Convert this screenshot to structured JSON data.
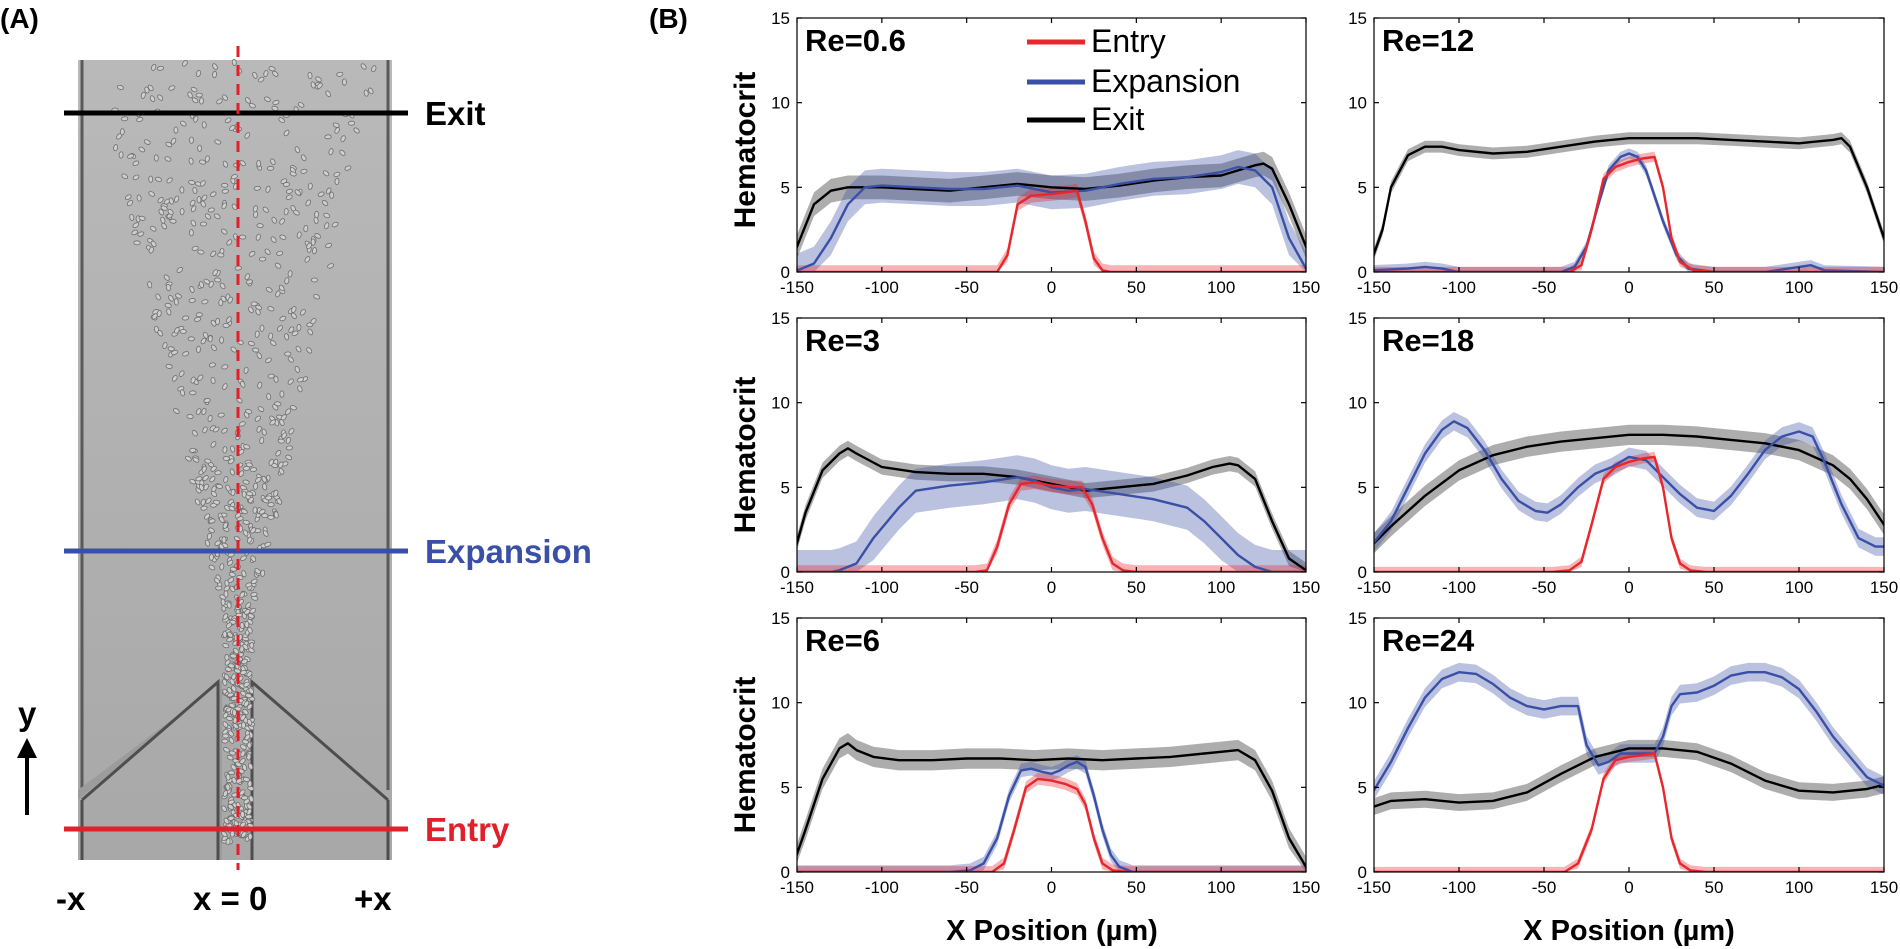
{
  "panel_a": {
    "tag": "(A)",
    "labels": {
      "exit": "Exit",
      "expansion": "Expansion",
      "entry": "Entry"
    },
    "axis": {
      "y": "y",
      "left": "-x",
      "center": "x = 0",
      "right": "+x"
    },
    "colors": {
      "exit": "#000000",
      "expansion": "#3a4fa6",
      "entry": "#e0202a"
    }
  },
  "panel_b": {
    "tag": "(B)",
    "xlabel": "X Position (µm)",
    "ylabel": "Hematocrit",
    "legend": [
      {
        "name": "Entry",
        "color": "#e8262c"
      },
      {
        "name": "Expansion",
        "color": "#3a4fa6"
      },
      {
        "name": "Exit",
        "color": "#000000"
      }
    ]
  },
  "chart_data": [
    {
      "type": "line",
      "title": "Re=0.6",
      "xlim": [
        -150,
        150
      ],
      "ylim": [
        0,
        15
      ],
      "xticks": [
        -150,
        -100,
        -50,
        0,
        50,
        100,
        150
      ],
      "yticks": [
        0,
        5,
        10,
        15
      ],
      "xlabel": "",
      "ylabel": "Hematocrit",
      "series": [
        {
          "name": "Exit",
          "color": "#000000",
          "band": 0.7,
          "x": [
            -152,
            -140,
            -130,
            -120,
            -100,
            -80,
            -60,
            -40,
            -20,
            0,
            20,
            40,
            60,
            80,
            100,
            110,
            120,
            125,
            130,
            140,
            150,
            152
          ],
          "y": [
            1.0,
            4.0,
            4.8,
            5.0,
            5.0,
            4.9,
            4.8,
            5.0,
            5.2,
            5.0,
            4.9,
            5.1,
            5.4,
            5.6,
            5.7,
            6.0,
            6.3,
            6.4,
            6.1,
            4.0,
            1.5,
            1.0
          ]
        },
        {
          "name": "Expansion",
          "color": "#3a4fa6",
          "band": 1.0,
          "x": [
            -152,
            -140,
            -130,
            -120,
            -110,
            -100,
            -80,
            -60,
            -40,
            -20,
            0,
            20,
            40,
            60,
            80,
            100,
            110,
            120,
            130,
            140,
            150,
            152
          ],
          "y": [
            0,
            0.5,
            2.0,
            4.0,
            5.0,
            5.1,
            5.0,
            4.9,
            4.9,
            5.1,
            4.7,
            4.8,
            5.2,
            5.5,
            5.6,
            5.9,
            6.2,
            6.0,
            5.0,
            2.0,
            0.2,
            0
          ]
        },
        {
          "name": "Entry",
          "color": "#e8262c",
          "band": 0.4,
          "x": [
            -152,
            -40,
            -32,
            -26,
            -20,
            -12,
            0,
            8,
            15,
            20,
            25,
            30,
            35,
            50,
            152
          ],
          "y": [
            0,
            0,
            0,
            1.0,
            4.0,
            4.5,
            4.6,
            4.7,
            4.8,
            3.0,
            0.8,
            0.1,
            0,
            0,
            0
          ]
        }
      ]
    },
    {
      "type": "line",
      "title": "Re=12",
      "xlim": [
        -150,
        150
      ],
      "ylim": [
        0,
        15
      ],
      "xticks": [
        -150,
        -100,
        -50,
        0,
        50,
        100,
        150
      ],
      "yticks": [
        0,
        5,
        10,
        15
      ],
      "xlabel": "",
      "ylabel": "",
      "series": [
        {
          "name": "Exit",
          "color": "#000000",
          "band": 0.35,
          "x": [
            -152,
            -145,
            -140,
            -130,
            -120,
            -110,
            -100,
            -80,
            -60,
            -40,
            -20,
            0,
            20,
            40,
            60,
            80,
            100,
            110,
            120,
            125,
            130,
            140,
            150,
            152
          ],
          "y": [
            0.5,
            2.5,
            5.0,
            6.9,
            7.4,
            7.4,
            7.2,
            7.0,
            7.1,
            7.4,
            7.7,
            7.9,
            7.9,
            7.9,
            7.8,
            7.7,
            7.6,
            7.7,
            7.8,
            7.9,
            7.4,
            5.0,
            2.0,
            1.5
          ]
        },
        {
          "name": "Expansion",
          "color": "#3a4fa6",
          "band": 0.3,
          "x": [
            -152,
            -130,
            -120,
            -110,
            -100,
            -50,
            -40,
            -32,
            -25,
            -18,
            -12,
            -5,
            0,
            5,
            10,
            15,
            20,
            28,
            35,
            50,
            80,
            100,
            107,
            115,
            152
          ],
          "y": [
            0.1,
            0.2,
            0.3,
            0.2,
            0,
            0,
            0,
            0.3,
            1.5,
            4.0,
            6.0,
            6.8,
            7.0,
            6.8,
            6.0,
            4.5,
            3.0,
            1.0,
            0.2,
            0,
            0,
            0.3,
            0.4,
            0.1,
            0
          ]
        },
        {
          "name": "Entry",
          "color": "#e8262c",
          "band": 0.3,
          "x": [
            -152,
            -50,
            -35,
            -28,
            -22,
            -15,
            -8,
            0,
            8,
            15,
            20,
            25,
            30,
            38,
            50,
            152
          ],
          "y": [
            0,
            0,
            0,
            0.4,
            2.5,
            5.5,
            6.2,
            6.5,
            6.7,
            6.8,
            5.0,
            2.0,
            0.6,
            0.1,
            0,
            0
          ]
        }
      ]
    },
    {
      "type": "line",
      "title": "Re=3",
      "xlim": [
        -150,
        150
      ],
      "ylim": [
        0,
        15
      ],
      "xticks": [
        -150,
        -100,
        -50,
        0,
        50,
        100,
        150
      ],
      "yticks": [
        0,
        5,
        10,
        15
      ],
      "xlabel": "",
      "ylabel": "Hematocrit",
      "series": [
        {
          "name": "Exit",
          "color": "#000000",
          "band": 0.45,
          "x": [
            -152,
            -145,
            -135,
            -125,
            -120,
            -115,
            -100,
            -80,
            -60,
            -40,
            -20,
            0,
            20,
            40,
            60,
            80,
            95,
            105,
            110,
            120,
            130,
            140,
            150,
            152
          ],
          "y": [
            1.0,
            3.5,
            6.0,
            7.0,
            7.3,
            7.0,
            6.2,
            5.9,
            5.8,
            5.8,
            5.6,
            5.2,
            4.8,
            5.0,
            5.2,
            5.7,
            6.2,
            6.4,
            6.3,
            5.5,
            3.0,
            0.8,
            0.1,
            0
          ]
        },
        {
          "name": "Expansion",
          "color": "#3a4fa6",
          "band": 1.3,
          "x": [
            -152,
            -130,
            -125,
            -115,
            -105,
            -90,
            -80,
            -60,
            -40,
            -20,
            -10,
            0,
            10,
            20,
            40,
            60,
            80,
            90,
            100,
            110,
            120,
            130,
            152
          ],
          "y": [
            0,
            0,
            0.1,
            0.5,
            2.0,
            3.8,
            4.8,
            5.1,
            5.3,
            5.6,
            5.4,
            5.0,
            4.8,
            4.9,
            4.6,
            4.3,
            3.8,
            3.0,
            2.0,
            1.0,
            0.3,
            0,
            0
          ]
        },
        {
          "name": "Entry",
          "color": "#e8262c",
          "band": 0.4,
          "x": [
            -152,
            -45,
            -38,
            -32,
            -25,
            -18,
            -10,
            0,
            10,
            18,
            24,
            30,
            36,
            42,
            50,
            152
          ],
          "y": [
            0,
            0,
            0.1,
            1.5,
            4.0,
            5.2,
            5.3,
            5.1,
            5.0,
            5.0,
            4.0,
            2.0,
            0.5,
            0.1,
            0,
            0
          ]
        }
      ]
    },
    {
      "type": "line",
      "title": "Re=18",
      "xlim": [
        -150,
        150
      ],
      "ylim": [
        0,
        15
      ],
      "xticks": [
        -150,
        -100,
        -50,
        0,
        50,
        100,
        150
      ],
      "yticks": [
        0,
        5,
        10,
        15
      ],
      "xlabel": "",
      "ylabel": "",
      "series": [
        {
          "name": "Exit",
          "color": "#000000",
          "band": 0.6,
          "x": [
            -152,
            -140,
            -120,
            -100,
            -80,
            -60,
            -40,
            -20,
            0,
            20,
            40,
            60,
            80,
            100,
            120,
            130,
            140,
            150,
            152
          ],
          "y": [
            1.5,
            2.7,
            4.5,
            6.0,
            6.9,
            7.4,
            7.7,
            7.9,
            8.1,
            8.1,
            8.0,
            7.8,
            7.6,
            7.2,
            6.3,
            5.5,
            4.3,
            2.8,
            2.4
          ]
        },
        {
          "name": "Expansion",
          "color": "#3a4fa6",
          "band": 0.55,
          "x": [
            -152,
            -140,
            -130,
            -120,
            -110,
            -103,
            -95,
            -85,
            -75,
            -65,
            -55,
            -48,
            -40,
            -30,
            -20,
            -10,
            0,
            10,
            20,
            30,
            40,
            50,
            60,
            70,
            80,
            90,
            100,
            108,
            115,
            125,
            135,
            145,
            152
          ],
          "y": [
            1.5,
            3.0,
            5.0,
            7.0,
            8.4,
            8.9,
            8.5,
            7.2,
            5.5,
            4.2,
            3.6,
            3.5,
            4.0,
            5.0,
            5.8,
            6.2,
            6.8,
            6.6,
            5.6,
            4.6,
            3.8,
            3.6,
            4.5,
            5.8,
            7.2,
            8.0,
            8.3,
            8.0,
            6.5,
            4.0,
            2.0,
            1.5,
            1.5
          ]
        },
        {
          "name": "Entry",
          "color": "#e8262c",
          "band": 0.3,
          "x": [
            -152,
            -45,
            -35,
            -28,
            -22,
            -15,
            -8,
            0,
            8,
            15,
            20,
            25,
            30,
            36,
            45,
            152
          ],
          "y": [
            0,
            0,
            0.1,
            0.6,
            2.8,
            5.5,
            6.2,
            6.5,
            6.7,
            6.8,
            5.0,
            2.0,
            0.5,
            0.1,
            0,
            0
          ]
        }
      ]
    },
    {
      "type": "line",
      "title": "Re=6",
      "xlim": [
        -150,
        150
      ],
      "ylim": [
        0,
        15
      ],
      "xticks": [
        -150,
        -100,
        -50,
        0,
        50,
        100,
        150
      ],
      "yticks": [
        0,
        5,
        10,
        15
      ],
      "xlabel": "X Position (µm)",
      "ylabel": "Hematocrit",
      "series": [
        {
          "name": "Exit",
          "color": "#000000",
          "band": 0.6,
          "x": [
            -152,
            -145,
            -135,
            -125,
            -120,
            -115,
            -105,
            -90,
            -70,
            -50,
            -30,
            -10,
            10,
            30,
            50,
            70,
            90,
            100,
            110,
            120,
            130,
            140,
            150,
            152
          ],
          "y": [
            0.5,
            2.5,
            5.5,
            7.3,
            7.6,
            7.2,
            6.8,
            6.6,
            6.6,
            6.7,
            6.7,
            6.6,
            6.7,
            6.6,
            6.7,
            6.8,
            7.0,
            7.1,
            7.2,
            6.6,
            4.8,
            2.0,
            0.3,
            0
          ]
        },
        {
          "name": "Expansion",
          "color": "#3a4fa6",
          "band": 0.4,
          "x": [
            -152,
            -60,
            -48,
            -40,
            -32,
            -25,
            -18,
            -12,
            -5,
            0,
            5,
            10,
            15,
            20,
            25,
            30,
            35,
            40,
            48,
            60,
            152
          ],
          "y": [
            0,
            0,
            0.1,
            0.5,
            2.0,
            4.5,
            6.0,
            6.1,
            5.9,
            5.8,
            6.0,
            6.3,
            6.5,
            6.2,
            4.5,
            2.5,
            1.0,
            0.3,
            0,
            0,
            0
          ]
        },
        {
          "name": "Entry",
          "color": "#e8262c",
          "band": 0.35,
          "x": [
            -152,
            -45,
            -35,
            -28,
            -22,
            -15,
            -8,
            0,
            8,
            15,
            20,
            25,
            30,
            36,
            45,
            152
          ],
          "y": [
            0,
            0,
            0,
            0.5,
            2.5,
            5.0,
            5.5,
            5.4,
            5.2,
            4.9,
            4.0,
            2.0,
            0.5,
            0.1,
            0,
            0
          ]
        }
      ]
    },
    {
      "type": "line",
      "title": "Re=24",
      "xlim": [
        -150,
        150
      ],
      "ylim": [
        0,
        15
      ],
      "xticks": [
        -150,
        -100,
        -50,
        0,
        50,
        100,
        150
      ],
      "yticks": [
        0,
        5,
        10,
        15
      ],
      "xlabel": "X Position (µm)",
      "ylabel": "",
      "series": [
        {
          "name": "Exit",
          "color": "#000000",
          "band": 0.5,
          "x": [
            -152,
            -140,
            -120,
            -100,
            -80,
            -60,
            -40,
            -20,
            0,
            20,
            40,
            60,
            80,
            100,
            120,
            140,
            152
          ],
          "y": [
            3.8,
            4.2,
            4.3,
            4.1,
            4.2,
            4.7,
            5.8,
            6.8,
            7.3,
            7.3,
            7.1,
            6.4,
            5.4,
            4.8,
            4.7,
            4.9,
            5.2
          ]
        },
        {
          "name": "Expansion",
          "color": "#3a4fa6",
          "band": 0.55,
          "x": [
            -152,
            -140,
            -130,
            -120,
            -110,
            -100,
            -90,
            -80,
            -70,
            -60,
            -50,
            -40,
            -30,
            -25,
            -18,
            -12,
            -5,
            0,
            5,
            10,
            15,
            20,
            25,
            30,
            40,
            50,
            60,
            70,
            80,
            90,
            100,
            110,
            120,
            130,
            140,
            152
          ],
          "y": [
            4.5,
            6.5,
            8.5,
            10.3,
            11.4,
            11.8,
            11.7,
            11.1,
            10.3,
            9.8,
            9.6,
            9.8,
            9.8,
            7.5,
            6.3,
            6.5,
            7.0,
            7.0,
            7.0,
            7.0,
            7.0,
            8.0,
            9.8,
            10.5,
            10.6,
            11.0,
            11.6,
            11.8,
            11.8,
            11.5,
            10.8,
            9.5,
            8.0,
            6.8,
            5.6,
            5.0
          ]
        },
        {
          "name": "Entry",
          "color": "#e8262c",
          "band": 0.3,
          "x": [
            -152,
            -50,
            -38,
            -30,
            -22,
            -15,
            -8,
            0,
            8,
            15,
            20,
            25,
            30,
            36,
            45,
            152
          ],
          "y": [
            0,
            0,
            0,
            0.5,
            2.5,
            5.5,
            6.6,
            6.8,
            6.9,
            7.0,
            5.0,
            2.0,
            0.5,
            0.1,
            0,
            0
          ]
        }
      ]
    }
  ]
}
